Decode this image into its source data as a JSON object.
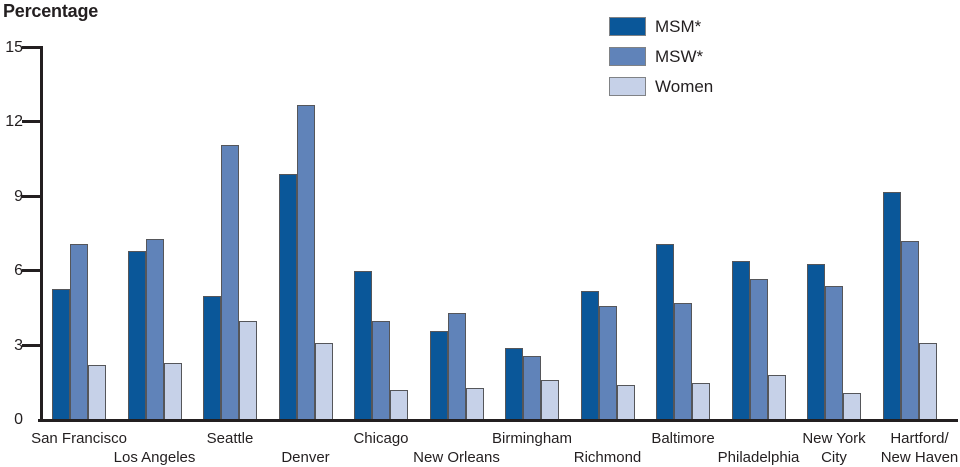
{
  "chart_data": {
    "type": "bar",
    "title": "Percentage",
    "ylabel": "Percentage",
    "xlabel": "",
    "ylim": [
      0,
      15
    ],
    "yticks": [
      0,
      3,
      6,
      9,
      12,
      15
    ],
    "grid": false,
    "legend_position": "top-right",
    "categories": [
      "San Francisco",
      "Los Angeles",
      "Seattle",
      "Denver",
      "Chicago",
      "New Orleans",
      "Birmingham",
      "Richmond",
      "Baltimore",
      "Philadelphia",
      "New York City",
      "Hartford/New Haven"
    ],
    "category_label_lines": [
      [
        "San Francisco"
      ],
      [
        "Los Angeles"
      ],
      [
        "Seattle"
      ],
      [
        "Denver"
      ],
      [
        "Chicago"
      ],
      [
        "New Orleans"
      ],
      [
        "Birmingham"
      ],
      [
        "Richmond"
      ],
      [
        "Baltimore"
      ],
      [
        "Philadelphia"
      ],
      [
        "New York",
        "City"
      ],
      [
        "Hartford/",
        "New Haven"
      ]
    ],
    "category_label_rows": [
      1,
      2,
      1,
      2,
      1,
      2,
      1,
      2,
      1,
      2,
      1,
      1
    ],
    "series": [
      {
        "name": "MSM*",
        "color": "#0A5799",
        "values": [
          5.3,
          6.8,
          5.0,
          9.9,
          6.0,
          3.6,
          2.9,
          5.2,
          7.1,
          6.4,
          6.3,
          9.2
        ]
      },
      {
        "name": "MSW*",
        "color": "#6083B9",
        "values": [
          7.1,
          7.3,
          11.1,
          12.7,
          4.0,
          4.3,
          2.6,
          4.6,
          4.7,
          5.7,
          5.4,
          7.2
        ]
      },
      {
        "name": "Women",
        "color": "#C6D1E8",
        "values": [
          2.2,
          2.3,
          4.0,
          3.1,
          1.2,
          1.3,
          1.6,
          1.4,
          1.5,
          1.8,
          1.1,
          3.1
        ]
      }
    ],
    "colors": {
      "axis": "#231F20",
      "text": "#231F20",
      "bar_border": "#55565A",
      "legend_swatch_border": "#808285",
      "background": "#FFFFFF"
    }
  }
}
